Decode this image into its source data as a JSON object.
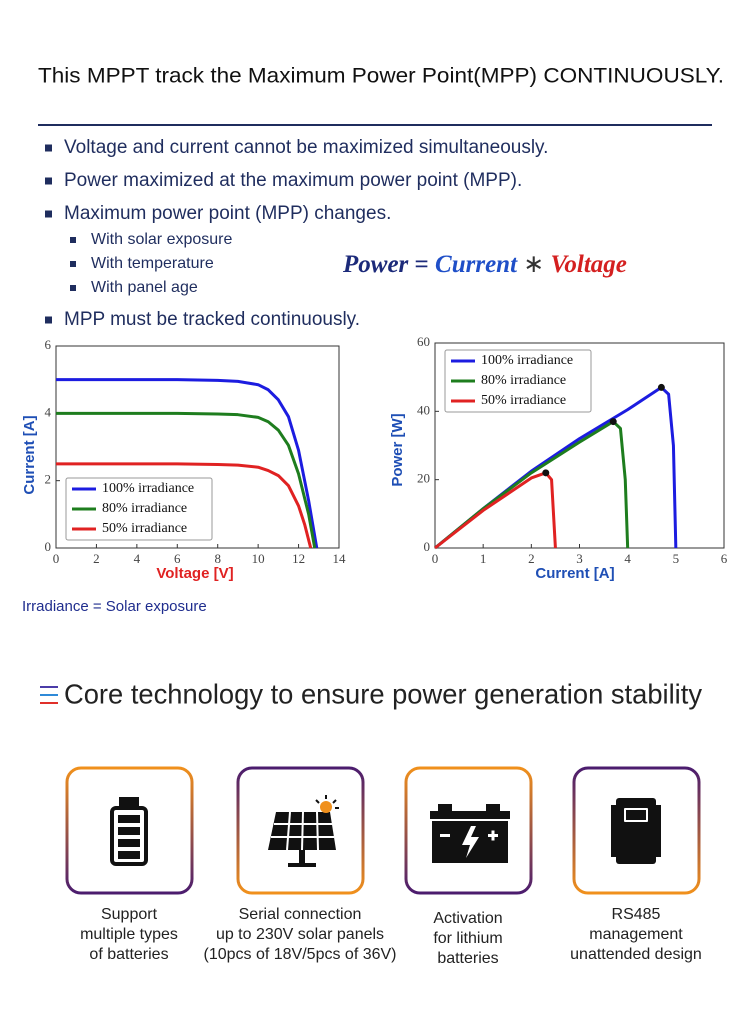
{
  "header": {
    "title": "This MPPT track the Maximum Power Point(MPP) CONTINUOUSLY."
  },
  "bullets": [
    {
      "text": "Voltage and current cannot be maximized simultaneously."
    },
    {
      "text": "Power maximized at the maximum power point (MPP)."
    },
    {
      "text": "Maximum power point (MPP) changes.",
      "sub": [
        "With solar exposure",
        "With temperature",
        "With panel age"
      ]
    },
    {
      "text": "MPP must be tracked continuously."
    }
  ],
  "formula": {
    "power": "Power",
    "equals": "=",
    "current": "Current",
    "times": "∗",
    "voltage": "Voltage"
  },
  "chart_data": [
    {
      "type": "line",
      "x_label": "Voltage [V]",
      "y_label": "Current [A]",
      "xlim": [
        0,
        14
      ],
      "ylim": [
        0,
        6
      ],
      "xticks": [
        0,
        2,
        4,
        6,
        8,
        10,
        12,
        14
      ],
      "yticks": [
        0,
        2,
        4,
        6
      ],
      "legend": "lower-left",
      "series": [
        {
          "name": "100% irradiance",
          "color": "#1c1ce0",
          "x": [
            0,
            2,
            4,
            6,
            8,
            9,
            10,
            10.5,
            11,
            11.5,
            12,
            12.5,
            12.9
          ],
          "values": [
            5,
            5,
            5,
            5,
            4.98,
            4.95,
            4.85,
            4.7,
            4.4,
            3.9,
            2.9,
            1.4,
            0
          ]
        },
        {
          "name": "80% irradiance",
          "color": "#1e7d1e",
          "x": [
            0,
            2,
            4,
            6,
            8,
            9,
            10,
            10.5,
            11,
            11.5,
            12,
            12.5,
            12.8
          ],
          "values": [
            4,
            4,
            4,
            4,
            3.98,
            3.96,
            3.88,
            3.75,
            3.5,
            3.05,
            2.2,
            1.0,
            0
          ]
        },
        {
          "name": "50% irradiance",
          "color": "#e02222",
          "x": [
            0,
            2,
            4,
            6,
            8,
            9,
            10,
            10.5,
            11,
            11.5,
            12,
            12.3,
            12.6
          ],
          "values": [
            2.5,
            2.5,
            2.5,
            2.5,
            2.48,
            2.46,
            2.4,
            2.3,
            2.15,
            1.85,
            1.25,
            0.7,
            0
          ]
        }
      ]
    },
    {
      "type": "line",
      "x_label": "Current [A]",
      "y_label": "Power [W]",
      "xlim": [
        0,
        6
      ],
      "ylim": [
        0,
        60
      ],
      "xticks": [
        0,
        1,
        2,
        3,
        4,
        5,
        6
      ],
      "yticks": [
        0,
        20,
        40,
        60
      ],
      "legend": "upper-left",
      "mpp_markers": true,
      "series": [
        {
          "name": "100% irradiance",
          "color": "#1c1ce0",
          "x": [
            0,
            1,
            2,
            3,
            4,
            4.7,
            4.85,
            4.95,
            5
          ],
          "values": [
            0,
            11.5,
            22.5,
            32,
            40.5,
            47,
            45,
            30,
            0
          ]
        },
        {
          "name": "80% irradiance",
          "color": "#1e7d1e",
          "x": [
            0,
            1,
            2,
            3,
            3.7,
            3.85,
            3.95,
            4
          ],
          "values": [
            0,
            11.5,
            22,
            31,
            37,
            35,
            20,
            0
          ]
        },
        {
          "name": "50% irradiance",
          "color": "#e02222",
          "x": [
            0,
            1,
            2,
            2.3,
            2.42,
            2.5
          ],
          "values": [
            0,
            11,
            20.5,
            22,
            20,
            0
          ]
        }
      ]
    }
  ],
  "note": "Irradiance = Solar exposure",
  "section": {
    "title": "Core technology to ensure power generation stability"
  },
  "features": [
    {
      "lines": [
        "Support",
        "multiple types",
        "of batteries"
      ]
    },
    {
      "lines": [
        "Serial connection",
        "up to 230V solar panels"
      ],
      "highlight": "(10pcs of 18V/5pcs of 36V)"
    },
    {
      "lines": [
        "Activation",
        "for lithium",
        "batteries"
      ]
    },
    {
      "lines": [
        "RS485",
        "management",
        "unattended design"
      ]
    }
  ]
}
